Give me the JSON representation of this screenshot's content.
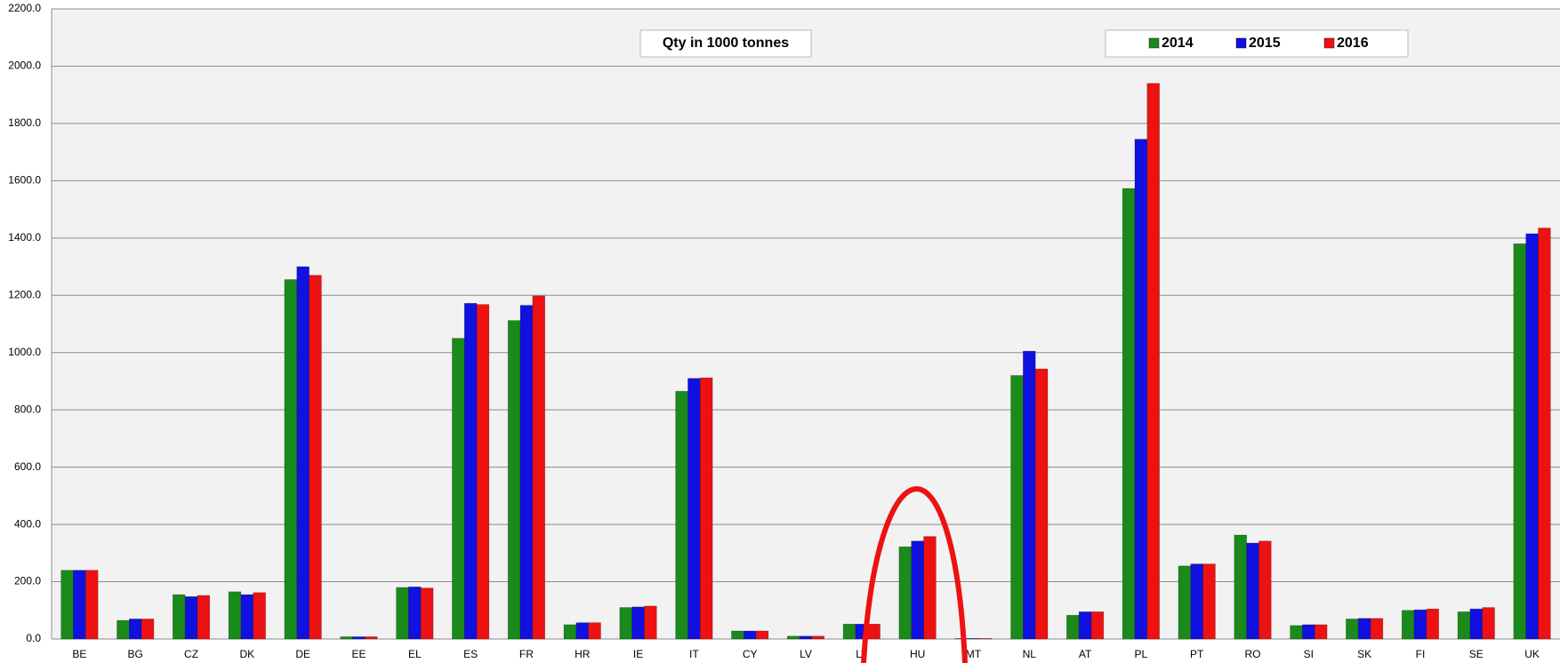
{
  "chart_data": {
    "type": "bar",
    "title": "Qty in 1000 tonnes",
    "categories": [
      "BE",
      "BG",
      "CZ",
      "DK",
      "DE",
      "EE",
      "EL",
      "ES",
      "FR",
      "HR",
      "IE",
      "IT",
      "CY",
      "LV",
      "LT",
      "HU",
      "MT",
      "NL",
      "AT",
      "PL",
      "PT",
      "RO",
      "SI",
      "SK",
      "FI",
      "SE",
      "UK"
    ],
    "series": [
      {
        "name": "2014",
        "color": "#1a8a1a",
        "values": [
          240,
          65,
          155,
          165,
          1255,
          8,
          180,
          1050,
          1112,
          50,
          110,
          865,
          28,
          10,
          52,
          322,
          2,
          920,
          83,
          1573,
          255,
          363,
          47,
          70,
          100,
          95,
          1380
        ]
      },
      {
        "name": "2015",
        "color": "#1010e0",
        "values": [
          240,
          70,
          148,
          155,
          1300,
          8,
          182,
          1172,
          1165,
          57,
          112,
          910,
          28,
          10,
          52,
          342,
          2,
          1005,
          95,
          1745,
          262,
          335,
          50,
          72,
          102,
          105,
          1415
        ]
      },
      {
        "name": "2016",
        "color": "#ee1111",
        "values": [
          240,
          70,
          152,
          162,
          1270,
          8,
          178,
          1168,
          1198,
          57,
          115,
          912,
          28,
          10,
          52,
          358,
          2,
          943,
          95,
          1940,
          262,
          342,
          50,
          72,
          105,
          110,
          1435
        ]
      }
    ],
    "ylim": [
      0,
      2200
    ],
    "yticks": [
      {
        "value": 0,
        "label": "0.0"
      },
      {
        "value": 200,
        "label": "200.0"
      },
      {
        "value": 400,
        "label": "400.0"
      },
      {
        "value": 600,
        "label": "600.0"
      },
      {
        "value": 800,
        "label": "800.0"
      },
      {
        "value": 1000,
        "label": "1000.0"
      },
      {
        "value": 1200,
        "label": "1200.0"
      },
      {
        "value": 1400,
        "label": "1400.0"
      },
      {
        "value": 1600,
        "label": "1600.0"
      },
      {
        "value": 1800,
        "label": "1800.0"
      },
      {
        "value": 2000,
        "label": "2000.0"
      },
      {
        "value": 2200,
        "label": "2200.0"
      }
    ],
    "grid": true
  }
}
